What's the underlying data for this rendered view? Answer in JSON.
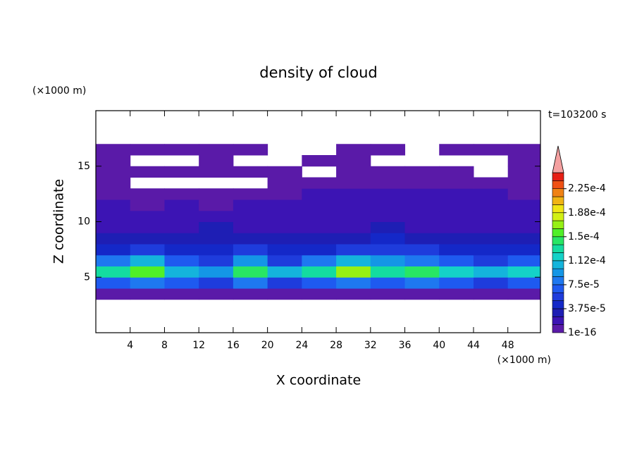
{
  "chart_data": {
    "type": "contour",
    "title": "density of cloud",
    "time_label": "t=103200 s",
    "x_label": "X coordinate",
    "y_label": "Z coordinate",
    "x_unit": "(×1000 m)",
    "y_unit": "(×1000 m)",
    "xlim": [
      0,
      51.8
    ],
    "ylim": [
      0,
      20
    ],
    "xticks": [
      4,
      8,
      12,
      16,
      20,
      24,
      28,
      32,
      36,
      40,
      44,
      48
    ],
    "yticks": [
      5,
      10,
      15
    ],
    "x_edges": [
      0,
      4,
      8,
      12,
      16,
      20,
      24,
      28,
      32,
      36,
      40,
      44,
      48,
      52
    ],
    "z_edges": [
      3,
      4,
      5,
      6,
      7,
      8,
      9,
      10,
      11,
      12,
      13,
      14,
      15,
      16,
      17
    ],
    "values": [
      [
        6e-06,
        6e-06,
        6e-06,
        6e-06,
        6e-06,
        6e-06,
        6e-06,
        6e-06,
        6e-06,
        6e-06,
        6e-06,
        6e-06,
        6e-06
      ],
      [
        7e-05,
        8e-05,
        7e-05,
        6e-05,
        8e-05,
        6e-05,
        7e-05,
        8e-05,
        7e-05,
        8e-05,
        7e-05,
        6e-05,
        7e-05
      ],
      [
        0.00013,
        0.00015,
        0.00011,
        9e-05,
        0.00014,
        0.0001,
        0.00013,
        0.00017,
        0.00013,
        0.00014,
        0.00012,
        0.00011,
        0.00012
      ],
      [
        8e-05,
        0.0001,
        7e-05,
        6e-05,
        9e-05,
        6e-05,
        8e-05,
        0.00011,
        9e-05,
        8e-05,
        7e-05,
        6e-05,
        7e-05
      ],
      [
        4.5e-05,
        5e-05,
        4e-05,
        4e-05,
        5.5e-05,
        4e-05,
        4.5e-05,
        5e-05,
        6e-05,
        5e-05,
        4e-05,
        4e-05,
        4.5e-05
      ],
      [
        3e-05,
        3e-05,
        2.8e-05,
        3e-05,
        3.5e-05,
        3e-05,
        3e-05,
        3.5e-05,
        3.8e-05,
        3.2e-05,
        3e-05,
        3e-05,
        3e-05
      ],
      [
        2e-05,
        2.2e-05,
        2e-05,
        2.6e-05,
        2.4e-05,
        2e-05,
        2e-05,
        2.2e-05,
        2.5e-05,
        2.2e-05,
        2e-05,
        2e-05,
        2e-05
      ],
      [
        1.4e-05,
        1.4e-05,
        1.3e-05,
        1.4e-05,
        1.4e-05,
        1.3e-05,
        1.4e-05,
        1.4e-05,
        1.4e-05,
        1.3e-05,
        1.4e-05,
        1.4e-05,
        1.4e-05
      ],
      [
        1.3e-05,
        1.2e-05,
        1.3e-05,
        1.2e-05,
        1.3e-05,
        1.3e-05,
        1.3e-05,
        1.3e-05,
        1.3e-05,
        1.3e-05,
        1.3e-05,
        1.3e-05,
        1.3e-05
      ],
      [
        8e-06,
        6e-06,
        6e-06,
        5e-06,
        6e-06,
        8e-06,
        1.3e-05,
        1.3e-05,
        1.4e-05,
        1.4e-05,
        1.3e-05,
        1.3e-05,
        1.2e-05
      ],
      [
        6e-06,
        null,
        null,
        null,
        null,
        6e-06,
        6e-06,
        8e-06,
        6e-06,
        6e-06,
        8e-06,
        6e-06,
        6e-06
      ],
      [
        6e-06,
        6e-06,
        6e-06,
        6e-06,
        6e-06,
        6e-06,
        null,
        6e-06,
        6e-06,
        6e-06,
        6e-06,
        null,
        6e-06
      ],
      [
        6e-06,
        null,
        null,
        6e-06,
        null,
        null,
        6e-06,
        6e-06,
        null,
        null,
        null,
        null,
        6e-06
      ],
      [
        6e-06,
        6e-06,
        6e-06,
        6e-06,
        6e-06,
        null,
        null,
        6e-06,
        6e-06,
        null,
        6e-06,
        6e-06,
        6e-06
      ]
    ],
    "clim": [
      0,
      0.00025
    ],
    "colors": [
      "#5a1aa8",
      "#3c14b4",
      "#1e1eb4",
      "#1428c8",
      "#1e3cdc",
      "#1e5af0",
      "#1e78f0",
      "#1496e6",
      "#14b4dc",
      "#14d2c8",
      "#14dca0",
      "#28e664",
      "#50f028",
      "#96f014",
      "#d2f014",
      "#f0e614",
      "#f0b414",
      "#f08214",
      "#f05014",
      "#e61e14"
    ],
    "over_color": "#f4a0a0",
    "cticks": [
      {
        "value": 1e-16,
        "label": "1e-16"
      },
      {
        "value": 3.75e-05,
        "label": "3.75e-5"
      },
      {
        "value": 7.5e-05,
        "label": "7.5e-5"
      },
      {
        "value": 0.0001125,
        "label": "1.12e-4"
      },
      {
        "value": 0.00015,
        "label": "1.5e-4"
      },
      {
        "value": 0.0001875,
        "label": "1.88e-4"
      },
      {
        "value": 0.000225,
        "label": "2.25e-4"
      }
    ]
  }
}
